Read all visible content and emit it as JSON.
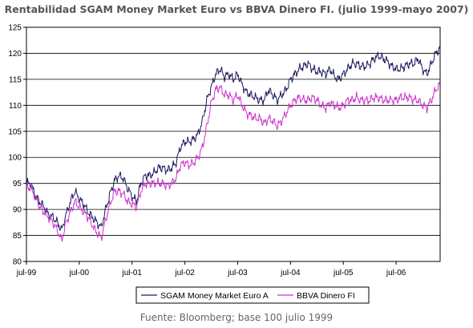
{
  "chart_data": {
    "type": "line",
    "title": "Rentabilidad SGAM Money Market Euro vs BBVA Dinero FI. (julio 1999-mayo 2007)",
    "source_note": "Fuente: Bloomberg; base 100 julio 1999",
    "xlim": [
      "1999-07",
      "2007-05"
    ],
    "x_tick_labels": [
      "jul-99",
      "jul-00",
      "jul-01",
      "jul-02",
      "jul-03",
      "jul-04",
      "jul-05",
      "jul-06"
    ],
    "ylim": [
      80,
      125
    ],
    "y_ticks": [
      80,
      85,
      90,
      95,
      100,
      105,
      110,
      115,
      120,
      125
    ],
    "grid": "horizontal",
    "legend_position": "bottom",
    "x": [
      "1999-07",
      "1999-08",
      "1999-09",
      "1999-10",
      "1999-11",
      "1999-12",
      "2000-01",
      "2000-02",
      "2000-03",
      "2000-04",
      "2000-05",
      "2000-06",
      "2000-07",
      "2000-08",
      "2000-09",
      "2000-10",
      "2000-11",
      "2000-12",
      "2001-01",
      "2001-02",
      "2001-03",
      "2001-04",
      "2001-05",
      "2001-06",
      "2001-07",
      "2001-08",
      "2001-09",
      "2001-10",
      "2001-11",
      "2001-12",
      "2002-01",
      "2002-02",
      "2002-03",
      "2002-04",
      "2002-05",
      "2002-06",
      "2002-07",
      "2002-08",
      "2002-09",
      "2002-10",
      "2002-11",
      "2002-12",
      "2003-01",
      "2003-02",
      "2003-03",
      "2003-04",
      "2003-05",
      "2003-06",
      "2003-07",
      "2003-08",
      "2003-09",
      "2003-10",
      "2003-11",
      "2003-12",
      "2004-01",
      "2004-02",
      "2004-03",
      "2004-04",
      "2004-05",
      "2004-06",
      "2004-07",
      "2004-08",
      "2004-09",
      "2004-10",
      "2004-11",
      "2004-12",
      "2005-01",
      "2005-02",
      "2005-03",
      "2005-04",
      "2005-05",
      "2005-06",
      "2005-07",
      "2005-08",
      "2005-09",
      "2005-10",
      "2005-11",
      "2005-12",
      "2006-01",
      "2006-02",
      "2006-03",
      "2006-04",
      "2006-05",
      "2006-06",
      "2006-07",
      "2006-08",
      "2006-09",
      "2006-10",
      "2006-11",
      "2006-12",
      "2007-01",
      "2007-02",
      "2007-03",
      "2007-04",
      "2007-05"
    ],
    "series": [
      {
        "name": "SGAM Money Market Euro A",
        "color": "#1a1a5e",
        "values": [
          95,
          95,
          92.5,
          91.5,
          90.5,
          89,
          88.5,
          87.5,
          86,
          89,
          91.5,
          93.5,
          92,
          91,
          89.5,
          88.5,
          87.5,
          86.5,
          90,
          93,
          95.5,
          96.5,
          96,
          94,
          92.5,
          91.5,
          95,
          96.5,
          96.5,
          97,
          98,
          98,
          97.5,
          98,
          99,
          102,
          103,
          103,
          103.5,
          104.5,
          107,
          111,
          113.5,
          116,
          117,
          115.5,
          116,
          115,
          116,
          114,
          112.5,
          112,
          111.5,
          111,
          111,
          113,
          112,
          111,
          112,
          113,
          115,
          116,
          117,
          117.5,
          118,
          117,
          116.5,
          116.5,
          116,
          117,
          115.5,
          115,
          116,
          117,
          118,
          118,
          117.5,
          117.5,
          118,
          119,
          119.5,
          119,
          118.5,
          117.5,
          117,
          117,
          117.5,
          118,
          118,
          119,
          117,
          116,
          118,
          120,
          121
        ]
      },
      {
        "name": "BBVA Dinero FI",
        "color": "#cc33cc",
        "values": [
          94.5,
          94,
          92.5,
          90.5,
          89.5,
          88.5,
          87.5,
          86,
          84,
          87.5,
          89.5,
          91.5,
          90.5,
          89.5,
          88.5,
          87,
          85.5,
          84.5,
          88,
          91,
          93.5,
          93.5,
          93,
          91.5,
          91,
          90.5,
          93.5,
          95,
          95,
          95,
          95,
          95,
          94.5,
          95,
          96,
          98.5,
          99,
          98.5,
          99,
          100,
          102,
          106,
          110.5,
          113,
          113.5,
          112,
          112,
          111,
          112,
          110,
          108.5,
          108,
          107.5,
          107.5,
          106.5,
          107.5,
          107,
          106,
          107,
          108.5,
          110,
          111,
          111.5,
          111,
          111,
          111.5,
          111,
          110,
          109.5,
          110.5,
          110,
          109.5,
          110,
          111,
          111,
          111.5,
          111,
          111,
          111,
          111.5,
          111.5,
          111,
          111,
          111,
          111,
          111.5,
          111.5,
          111.5,
          111,
          111,
          110,
          109.5,
          111,
          113,
          114
        ]
      }
    ]
  }
}
